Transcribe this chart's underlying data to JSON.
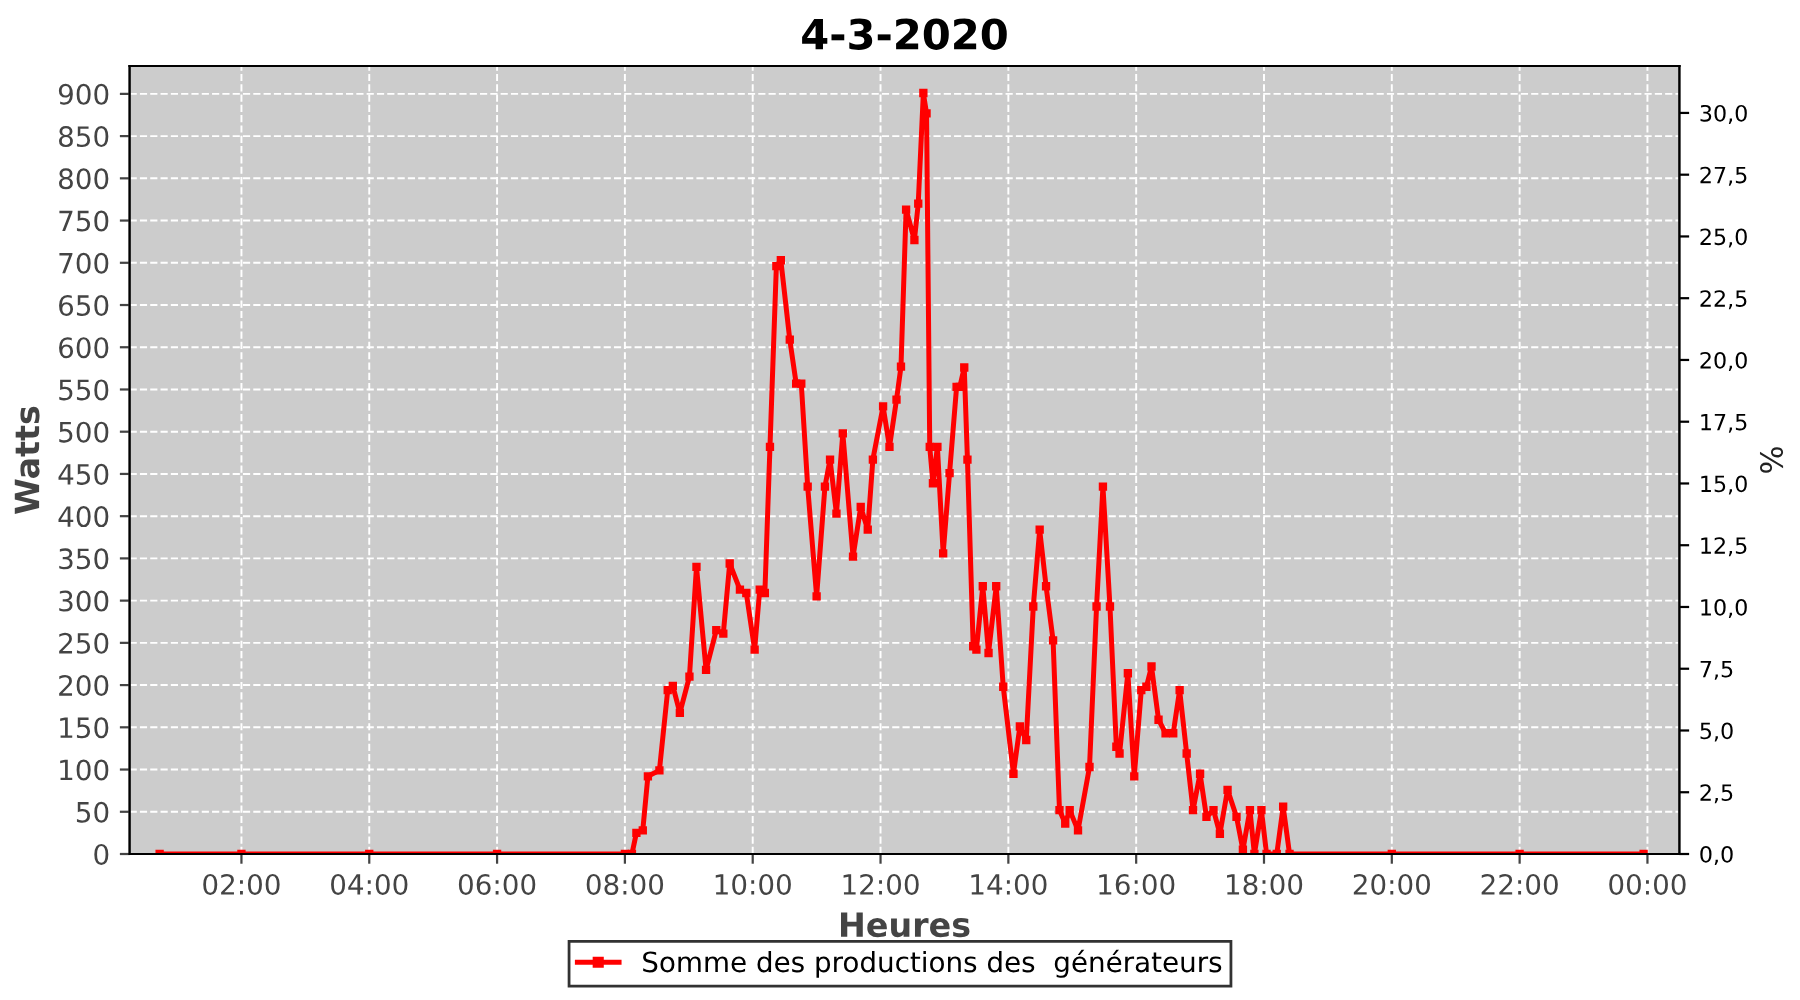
{
  "chart_data": {
    "type": "line",
    "title": "4-3-2020",
    "xlabel": "Heures",
    "ylabel": "Watts",
    "y2label": "%",
    "xlim": [
      0.25,
      24.5
    ],
    "xticks": [
      {
        "value": 2,
        "label": "02:00"
      },
      {
        "value": 4,
        "label": "04:00"
      },
      {
        "value": 6,
        "label": "06:00"
      },
      {
        "value": 8,
        "label": "08:00"
      },
      {
        "value": 10,
        "label": "10:00"
      },
      {
        "value": 12,
        "label": "12:00"
      },
      {
        "value": 14,
        "label": "14:00"
      },
      {
        "value": 16,
        "label": "16:00"
      },
      {
        "value": 18,
        "label": "18:00"
      },
      {
        "value": 20,
        "label": "20:00"
      },
      {
        "value": 22,
        "label": "22:00"
      },
      {
        "value": 24,
        "label": "00:00"
      }
    ],
    "ylim": [
      0,
      933
    ],
    "yticks": [
      0,
      50,
      100,
      150,
      200,
      250,
      300,
      350,
      400,
      450,
      500,
      550,
      600,
      650,
      700,
      750,
      800,
      850,
      900
    ],
    "y2lim": [
      0,
      31.9
    ],
    "y2ticks": [
      {
        "value": 0,
        "label": "0,0"
      },
      {
        "value": 2.5,
        "label": "2,5"
      },
      {
        "value": 5,
        "label": "5,0"
      },
      {
        "value": 7.5,
        "label": "7,5"
      },
      {
        "value": 10,
        "label": "10,0"
      },
      {
        "value": 12.5,
        "label": "12,5"
      },
      {
        "value": 15,
        "label": "15,0"
      },
      {
        "value": 17.5,
        "label": "17,5"
      },
      {
        "value": 20,
        "label": "20,0"
      },
      {
        "value": 22.5,
        "label": "22,5"
      },
      {
        "value": 25,
        "label": "25,0"
      },
      {
        "value": 27.5,
        "label": "27,5"
      },
      {
        "value": 30,
        "label": "30,0"
      }
    ],
    "grid": true,
    "legend": "bottom",
    "marker": "square",
    "line_style": "solid",
    "series": [
      {
        "name": "Somme des productions des  générateurs",
        "color": "#ff0000",
        "x": [
          0.72,
          2,
          4,
          6,
          8,
          8.11,
          8.18,
          8.28,
          8.36,
          8.54,
          8.67,
          8.75,
          8.86,
          9.01,
          9.12,
          9.27,
          9.43,
          9.54,
          9.64,
          9.8,
          9.9,
          10.03,
          10.11,
          10.19,
          10.27,
          10.37,
          10.44,
          10.58,
          10.68,
          10.76,
          10.86,
          11.0,
          11.13,
          11.21,
          11.31,
          11.41,
          11.57,
          11.69,
          11.8,
          11.88,
          12.04,
          12.14,
          12.25,
          12.32,
          12.4,
          12.53,
          12.59,
          12.67,
          12.72,
          12.77,
          12.82,
          12.89,
          12.98,
          13.08,
          13.19,
          13.24,
          13.31,
          13.36,
          13.45,
          13.5,
          13.6,
          13.69,
          13.81,
          13.92,
          14.08,
          14.18,
          14.28,
          14.39,
          14.49,
          14.59,
          14.7,
          14.8,
          14.89,
          14.96,
          15.09,
          15.27,
          15.38,
          15.48,
          15.59,
          15.69,
          15.74,
          15.87,
          15.97,
          16.08,
          16.16,
          16.24,
          16.35,
          16.46,
          16.58,
          16.68,
          16.79,
          16.89,
          17.0,
          17.1,
          17.21,
          17.31,
          17.43,
          17.57,
          17.67,
          17.78,
          17.85,
          17.96,
          18.04,
          18.2,
          18.3,
          18.4,
          20,
          22,
          23.94
        ],
        "values": [
          0,
          0,
          0,
          0,
          0,
          0,
          25,
          28,
          92,
          99,
          194,
          199,
          167,
          210,
          340,
          218,
          265,
          261,
          344,
          313,
          309,
          242,
          313,
          309,
          482,
          696,
          703,
          609,
          557,
          557,
          435,
          305,
          435,
          467,
          403,
          498,
          352,
          411,
          384,
          467,
          530,
          482,
          538,
          577,
          763,
          727,
          770,
          901,
          877,
          482,
          439,
          482,
          356,
          451,
          553,
          553,
          576,
          467,
          246,
          242,
          317,
          238,
          317,
          198,
          95,
          151,
          135,
          293,
          384,
          317,
          253,
          52,
          36,
          52,
          28,
          103,
          293,
          435,
          293,
          127,
          119,
          214,
          92,
          194,
          198,
          222,
          159,
          143,
          143,
          194,
          119,
          52,
          95,
          44,
          52,
          24,
          76,
          44,
          5,
          52,
          0,
          52,
          0,
          0,
          56,
          0,
          0,
          0,
          0
        ]
      }
    ]
  }
}
